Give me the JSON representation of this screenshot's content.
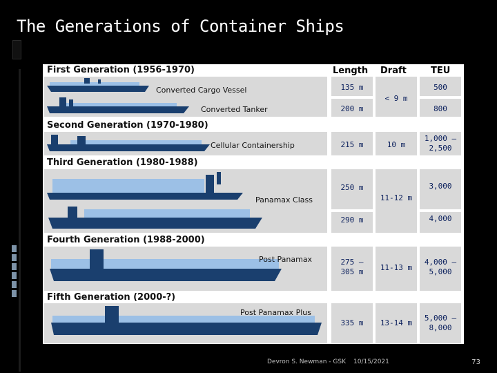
{
  "slide": {
    "title": "The Generations of Container Ships",
    "footer_author": "Devron S. Newman - GSK",
    "footer_date": "10/15/2021",
    "page_number": "73"
  },
  "table": {
    "headers": {
      "length": "Length",
      "draft": "Draft",
      "teu": "TEU"
    },
    "generations": [
      {
        "label": "First Generation (1956-1970)"
      },
      {
        "label": "Second Generation (1970-1980)"
      },
      {
        "label": "Third Generation (1980-1988)"
      },
      {
        "label": "Fourth Generation (1988-2000)"
      },
      {
        "label": "Fifth Generation (2000-?)"
      }
    ],
    "ships": {
      "converted_cargo": {
        "name": "Converted Cargo Vessel",
        "length": "135 m",
        "teu": "500"
      },
      "converted_tanker": {
        "name": "Converted Tanker",
        "length": "200 m",
        "teu": "800"
      },
      "first_draft": "< 9 m",
      "cellular": {
        "name": "Cellular Containership",
        "length": "215 m",
        "draft": "10 m",
        "teu_line1": "1,000 –",
        "teu_line2": "2,500"
      },
      "panamax": {
        "name": "Panamax Class",
        "length1": "250 m",
        "length2": "290 m",
        "draft": "11-12 m",
        "teu1": "3,000",
        "teu2": "4,000"
      },
      "post_panamax": {
        "name": "Post Panamax",
        "length_line1": "275 –",
        "length_line2": "305 m",
        "draft": "11-13 m",
        "teu_line1": "4,000 –",
        "teu_line2": "5,000"
      },
      "post_panamax_plus": {
        "name": "Post Panamax Plus",
        "length": "335 m",
        "draft": "13-14 m",
        "teu_line1": "5,000 –",
        "teu_line2": "8,000"
      }
    }
  },
  "colors": {
    "hull": "#1a3f6e",
    "deck": "#9cc0e6",
    "panel_grey": "#d9d9d9"
  }
}
